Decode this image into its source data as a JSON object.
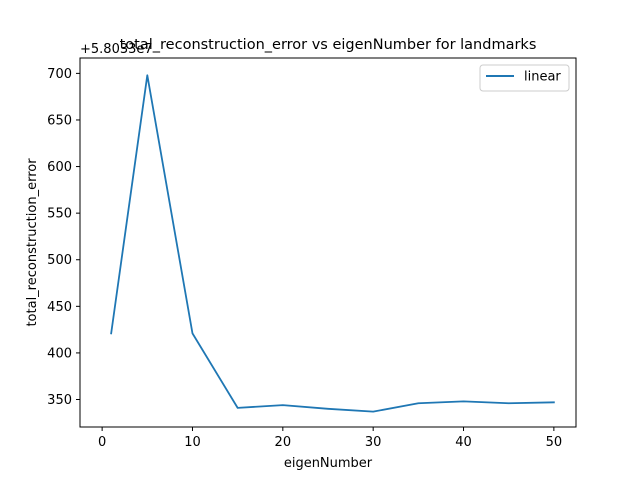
{
  "chart_data": {
    "type": "line",
    "title": "total_reconstruction_error vs eigenNumber for landmarks",
    "xlabel": "eigenNumber",
    "ylabel": "total_reconstruction_error",
    "offset_text": "+5.8033e7",
    "xlim": [
      -2.45,
      52.45
    ],
    "ylim": [
      320.5,
      716.5
    ],
    "xticks": [
      0,
      10,
      20,
      30,
      40,
      50
    ],
    "yticks": [
      350,
      400,
      450,
      500,
      550,
      600,
      650,
      700
    ],
    "grid": false,
    "legend": "top-right",
    "series": [
      {
        "name": "linear",
        "color": "#1f77b4",
        "x": [
          1,
          5,
          10,
          15,
          20,
          25,
          30,
          35,
          40,
          45,
          50
        ],
        "y": [
          421,
          698,
          421,
          341,
          344,
          340,
          337,
          346,
          348,
          346,
          347
        ]
      }
    ]
  }
}
